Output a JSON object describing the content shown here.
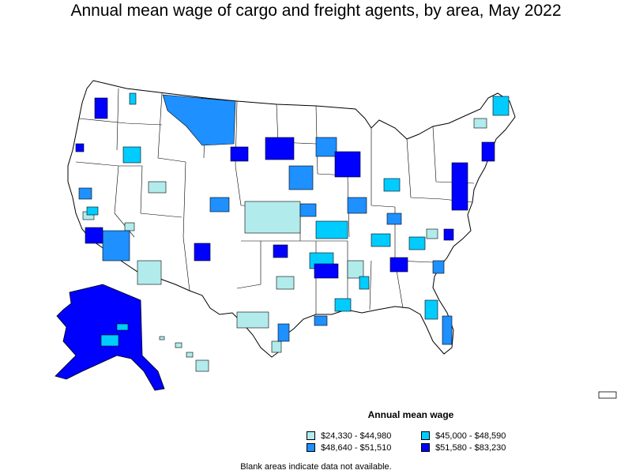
{
  "title": "Annual mean wage of cargo and freight agents, by area, May 2022",
  "legend": {
    "title": "Annual mean wage",
    "items": [
      {
        "label": "$24,330 - $44,980",
        "color": "#b2ebeb"
      },
      {
        "label": "$45,000 - $48,590",
        "color": "#00ccff"
      },
      {
        "label": "$48,640 - $51,510",
        "color": "#1e90ff"
      },
      {
        "label": "$51,580 - $83,230",
        "color": "#0000ff"
      }
    ]
  },
  "note": "Blank areas indicate data not available.",
  "colors": {
    "blank": "#ffffff",
    "border": "#000000",
    "tier1": "#b2ebeb",
    "tier2": "#00ccff",
    "tier3": "#1e90ff",
    "tier4": "#0000ff"
  }
}
